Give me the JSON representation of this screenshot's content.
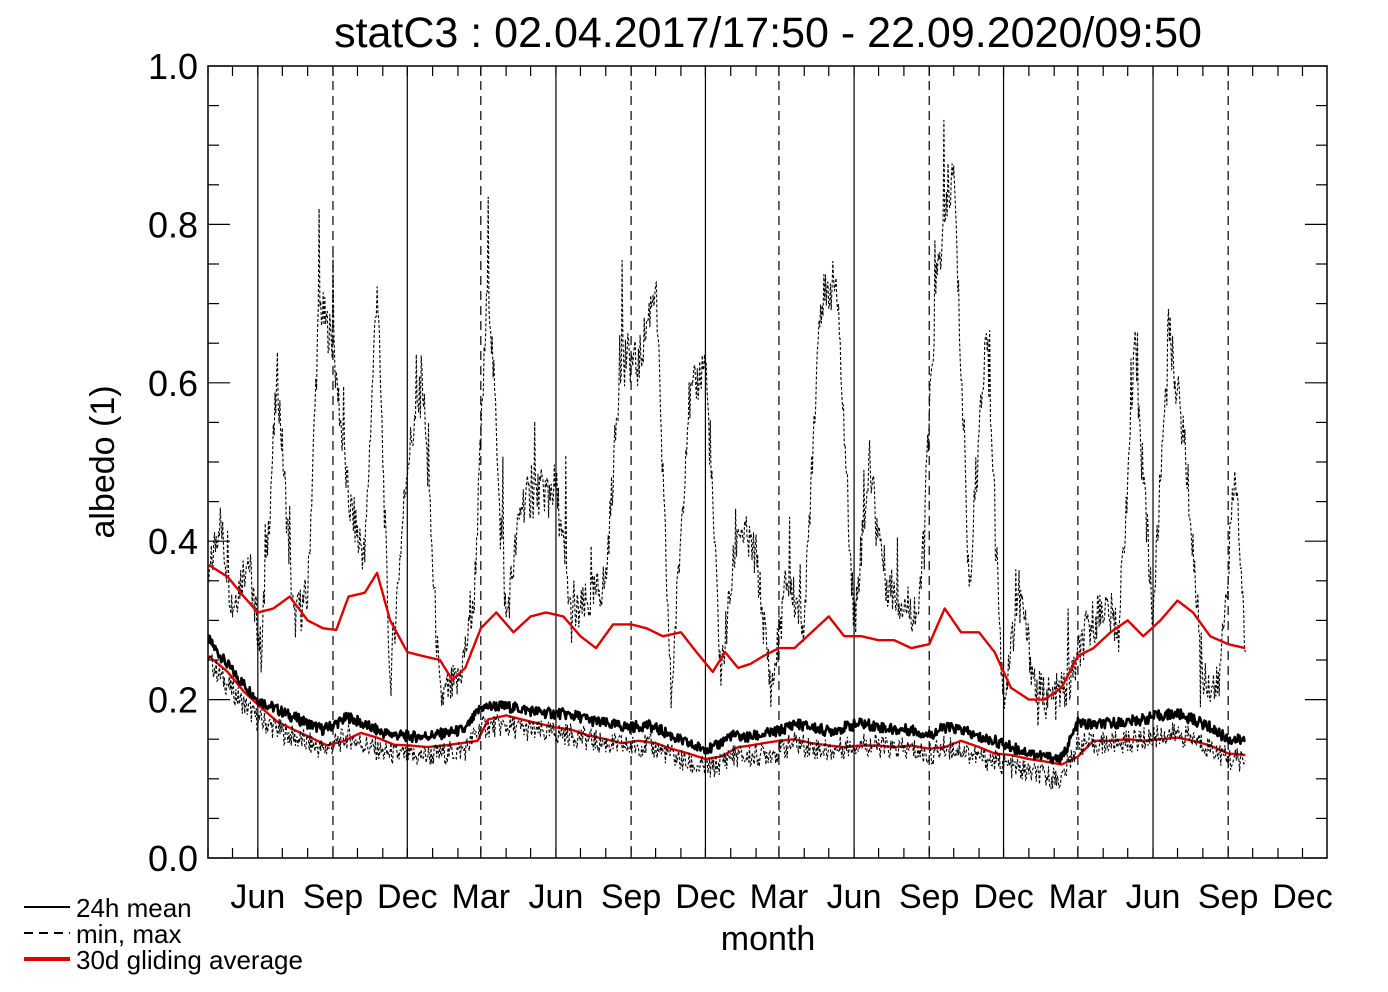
{
  "chart_data": {
    "type": "line",
    "title": "statC3 : 02.04.2017/17:50 - 22.09.2020/09:50",
    "xlabel": "month",
    "ylabel": "albedo (1)",
    "x_ticks": [
      "Jun",
      "Sep",
      "Dec",
      "Mar",
      "Jun",
      "Sep",
      "Dec",
      "Mar",
      "Jun",
      "Sep",
      "Dec",
      "Mar",
      "Jun",
      "Sep",
      "Dec"
    ],
    "x_tick_dates": [
      "2017-06-01",
      "2017-09-01",
      "2017-12-01",
      "2018-03-01",
      "2018-06-01",
      "2018-09-01",
      "2018-12-01",
      "2019-03-01",
      "2019-06-01",
      "2019-09-01",
      "2019-12-01",
      "2020-03-01",
      "2020-06-01",
      "2020-09-01",
      "2020-12-01"
    ],
    "xlim": [
      "2017-04-01",
      "2020-12-31"
    ],
    "ylim": [
      0.0,
      1.0
    ],
    "y_ticks": [
      "0.0",
      "0.2",
      "0.4",
      "0.6",
      "0.8",
      "1.0"
    ],
    "legend_position": "bottom-left",
    "colors": {
      "mean": "#000000",
      "minmax": "#000000",
      "gliding": "#dd0000"
    },
    "legend": [
      {
        "label": "24h mean",
        "style": "solid"
      },
      {
        "label": "min, max",
        "style": "dashed"
      },
      {
        "label": "30d gliding average",
        "style": "red"
      }
    ],
    "series": [
      {
        "name": "24h mean",
        "x": [
          "2017-04-02",
          "2017-04-20",
          "2017-05-10",
          "2017-06-01",
          "2017-06-20",
          "2017-07-10",
          "2017-08-01",
          "2017-08-20",
          "2017-09-05",
          "2017-09-20",
          "2017-10-10",
          "2017-11-01",
          "2017-11-20",
          "2017-12-10",
          "2018-01-01",
          "2018-01-20",
          "2018-02-10",
          "2018-03-01",
          "2018-03-20",
          "2018-04-10",
          "2018-05-01",
          "2018-05-20",
          "2018-06-10",
          "2018-07-01",
          "2018-07-20",
          "2018-08-10",
          "2018-09-01",
          "2018-09-20",
          "2018-10-10",
          "2018-11-01",
          "2018-11-20",
          "2018-12-10",
          "2019-01-01",
          "2019-01-20",
          "2019-02-10",
          "2019-03-01",
          "2019-03-20",
          "2019-04-10",
          "2019-05-01",
          "2019-05-20",
          "2019-06-10",
          "2019-07-01",
          "2019-07-20",
          "2019-08-10",
          "2019-09-01",
          "2019-09-20",
          "2019-10-10",
          "2019-11-01",
          "2019-11-20",
          "2019-12-10",
          "2020-01-01",
          "2020-01-20",
          "2020-02-10",
          "2020-03-01",
          "2020-03-20",
          "2020-04-10",
          "2020-05-01",
          "2020-05-20",
          "2020-06-10",
          "2020-07-01",
          "2020-07-20",
          "2020-08-10",
          "2020-09-01",
          "2020-09-22"
        ],
        "values": [
          0.275,
          0.25,
          0.225,
          0.2,
          0.19,
          0.18,
          0.17,
          0.162,
          0.17,
          0.178,
          0.168,
          0.158,
          0.155,
          0.153,
          0.155,
          0.158,
          0.162,
          0.19,
          0.192,
          0.19,
          0.186,
          0.183,
          0.182,
          0.178,
          0.172,
          0.168,
          0.165,
          0.168,
          0.16,
          0.148,
          0.14,
          0.138,
          0.155,
          0.152,
          0.156,
          0.16,
          0.17,
          0.165,
          0.16,
          0.165,
          0.17,
          0.166,
          0.162,
          0.162,
          0.155,
          0.165,
          0.162,
          0.152,
          0.148,
          0.14,
          0.133,
          0.128,
          0.125,
          0.17,
          0.168,
          0.17,
          0.172,
          0.175,
          0.18,
          0.182,
          0.175,
          0.165,
          0.15,
          0.148
        ]
      },
      {
        "name": "min, max",
        "style": "dashed",
        "x": [
          "2017-04-02",
          "2017-04-15",
          "2017-05-01",
          "2017-05-20",
          "2017-06-05",
          "2017-06-25",
          "2017-07-15",
          "2017-08-01",
          "2017-08-15",
          "2017-09-01",
          "2017-09-20",
          "2017-10-10",
          "2017-10-25",
          "2017-11-10",
          "2017-12-01",
          "2017-12-20",
          "2018-01-10",
          "2018-02-01",
          "2018-02-20",
          "2018-03-10",
          "2018-04-01",
          "2018-04-20",
          "2018-05-10",
          "2018-06-01",
          "2018-06-20",
          "2018-07-10",
          "2018-08-01",
          "2018-08-20",
          "2018-09-10",
          "2018-10-01",
          "2018-10-20",
          "2018-11-10",
          "2018-12-01",
          "2018-12-20",
          "2019-01-10",
          "2019-02-01",
          "2019-02-20",
          "2019-03-10",
          "2019-04-01",
          "2019-04-20",
          "2019-05-10",
          "2019-06-01",
          "2019-06-20",
          "2019-07-10",
          "2019-08-01",
          "2019-08-20",
          "2019-09-10",
          "2019-10-01",
          "2019-10-20",
          "2019-11-10",
          "2019-12-01",
          "2019-12-20",
          "2020-01-10",
          "2020-02-01",
          "2020-02-20",
          "2020-03-10",
          "2020-04-01",
          "2020-04-20",
          "2020-05-10",
          "2020-06-01",
          "2020-06-20",
          "2020-07-10",
          "2020-08-01",
          "2020-08-20",
          "2020-09-10",
          "2020-09-22"
        ],
        "values": [
          0.35,
          0.43,
          0.32,
          0.38,
          0.26,
          0.61,
          0.3,
          0.33,
          0.7,
          0.65,
          0.45,
          0.38,
          0.73,
          0.22,
          0.5,
          0.6,
          0.2,
          0.22,
          0.31,
          0.74,
          0.3,
          0.45,
          0.46,
          0.47,
          0.3,
          0.32,
          0.35,
          0.64,
          0.62,
          0.73,
          0.2,
          0.57,
          0.63,
          0.23,
          0.42,
          0.38,
          0.21,
          0.35,
          0.3,
          0.7,
          0.73,
          0.3,
          0.5,
          0.35,
          0.32,
          0.31,
          0.73,
          0.87,
          0.34,
          0.67,
          0.2,
          0.34,
          0.21,
          0.2,
          0.22,
          0.28,
          0.32,
          0.29,
          0.64,
          0.3,
          0.67,
          0.52,
          0.23,
          0.21,
          0.49,
          0.26
        ]
      },
      {
        "name": "30d gliding average",
        "style": "red",
        "x": [
          "2017-04-02",
          "2017-04-25",
          "2017-05-15",
          "2017-06-01",
          "2017-06-20",
          "2017-07-10",
          "2017-08-01",
          "2017-08-20",
          "2017-09-05",
          "2017-09-20",
          "2017-10-10",
          "2017-10-25",
          "2017-11-10",
          "2017-12-01",
          "2017-12-20",
          "2018-01-10",
          "2018-01-25",
          "2018-02-10",
          "2018-03-01",
          "2018-03-20",
          "2018-04-10",
          "2018-05-01",
          "2018-05-20",
          "2018-06-10",
          "2018-07-01",
          "2018-07-20",
          "2018-08-10",
          "2018-09-01",
          "2018-09-20",
          "2018-10-10",
          "2018-11-01",
          "2018-11-20",
          "2018-12-10",
          "2018-12-25",
          "2019-01-10",
          "2019-01-25",
          "2019-02-10",
          "2019-03-01",
          "2019-03-20",
          "2019-04-10",
          "2019-05-01",
          "2019-05-20",
          "2019-06-10",
          "2019-07-01",
          "2019-07-20",
          "2019-08-10",
          "2019-09-01",
          "2019-09-20",
          "2019-10-10",
          "2019-11-01",
          "2019-11-20",
          "2019-12-10",
          "2020-01-01",
          "2020-01-20",
          "2020-02-10",
          "2020-03-01",
          "2020-03-20",
          "2020-04-10",
          "2020-05-01",
          "2020-05-20",
          "2020-06-10",
          "2020-07-01",
          "2020-07-20",
          "2020-08-10",
          "2020-09-01",
          "2020-09-22"
        ],
        "values": [
          0.37,
          0.355,
          0.33,
          0.31,
          0.315,
          0.33,
          0.3,
          0.29,
          0.288,
          0.33,
          0.335,
          0.36,
          0.3,
          0.26,
          0.255,
          0.25,
          0.225,
          0.24,
          0.29,
          0.31,
          0.285,
          0.305,
          0.31,
          0.305,
          0.28,
          0.265,
          0.295,
          0.295,
          0.29,
          0.28,
          0.285,
          0.26,
          0.235,
          0.26,
          0.24,
          0.245,
          0.255,
          0.265,
          0.265,
          0.285,
          0.305,
          0.28,
          0.28,
          0.275,
          0.275,
          0.265,
          0.27,
          0.315,
          0.285,
          0.285,
          0.26,
          0.215,
          0.2,
          0.2,
          0.215,
          0.255,
          0.265,
          0.285,
          0.3,
          0.28,
          0.3,
          0.325,
          0.31,
          0.28,
          0.27,
          0.265
        ]
      },
      {
        "name": "30d gliding average",
        "style": "red",
        "x": [
          "2017-04-02",
          "2017-04-25",
          "2017-05-15",
          "2017-06-05",
          "2017-06-25",
          "2017-07-15",
          "2017-08-05",
          "2017-08-25",
          "2017-09-15",
          "2017-10-05",
          "2017-10-25",
          "2017-11-15",
          "2017-12-05",
          "2017-12-25",
          "2018-01-15",
          "2018-02-05",
          "2018-02-25",
          "2018-03-10",
          "2018-04-01",
          "2018-04-20",
          "2018-05-10",
          "2018-06-01",
          "2018-06-20",
          "2018-07-10",
          "2018-08-01",
          "2018-08-20",
          "2018-09-10",
          "2018-10-01",
          "2018-10-20",
          "2018-11-10",
          "2018-12-01",
          "2018-12-20",
          "2019-01-10",
          "2019-01-25",
          "2019-02-10",
          "2019-03-01",
          "2019-03-20",
          "2019-04-10",
          "2019-05-01",
          "2019-05-20",
          "2019-06-10",
          "2019-07-01",
          "2019-07-20",
          "2019-08-10",
          "2019-09-01",
          "2019-09-20",
          "2019-10-10",
          "2019-11-01",
          "2019-11-20",
          "2019-12-10",
          "2020-01-01",
          "2020-01-20",
          "2020-02-10",
          "2020-03-01",
          "2020-03-20",
          "2020-04-10",
          "2020-05-01",
          "2020-05-20",
          "2020-06-10",
          "2020-07-01",
          "2020-07-20",
          "2020-08-10",
          "2020-09-01",
          "2020-09-22"
        ],
        "values": [
          0.255,
          0.235,
          0.21,
          0.19,
          0.172,
          0.162,
          0.152,
          0.142,
          0.148,
          0.158,
          0.152,
          0.143,
          0.142,
          0.14,
          0.142,
          0.145,
          0.148,
          0.175,
          0.18,
          0.175,
          0.17,
          0.165,
          0.162,
          0.155,
          0.15,
          0.145,
          0.148,
          0.145,
          0.138,
          0.132,
          0.125,
          0.128,
          0.14,
          0.142,
          0.145,
          0.148,
          0.15,
          0.145,
          0.142,
          0.14,
          0.142,
          0.142,
          0.14,
          0.142,
          0.138,
          0.14,
          0.148,
          0.14,
          0.132,
          0.13,
          0.125,
          0.122,
          0.118,
          0.128,
          0.148,
          0.148,
          0.15,
          0.148,
          0.15,
          0.152,
          0.148,
          0.142,
          0.132,
          0.13
        ]
      }
    ]
  }
}
